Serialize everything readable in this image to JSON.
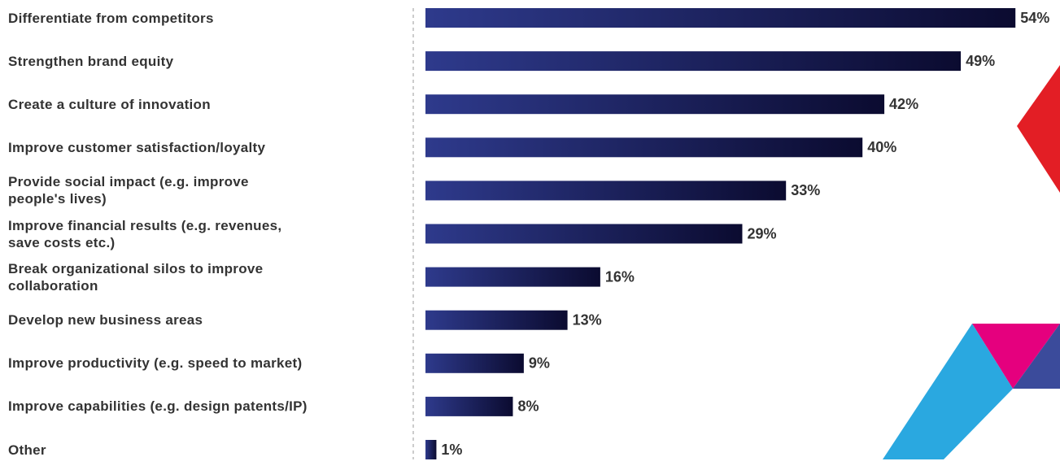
{
  "chart_data": {
    "type": "bar",
    "orientation": "horizontal",
    "categories": [
      "Differentiate from competitors",
      "Strengthen brand equity",
      "Create a culture of innovation",
      "Improve customer satisfaction/loyalty",
      "Provide social impact (e.g. improve\npeople's lives)",
      "Improve financial results (e.g. revenues,\nsave costs etc.)",
      "Break organizational silos to improve\ncollaboration",
      "Develop new business areas",
      "Improve productivity (e.g. speed to market)",
      "Improve capabilities (e.g. design patents/IP)",
      "Other"
    ],
    "values": [
      54,
      49,
      42,
      40,
      33,
      29,
      16,
      13,
      9,
      8,
      1
    ],
    "value_labels": [
      "54%",
      "49%",
      "42%",
      "40%",
      "33%",
      "29%",
      "16%",
      "13%",
      "9%",
      "8%",
      "1%"
    ],
    "color": "#2e3a8c"
  }
}
